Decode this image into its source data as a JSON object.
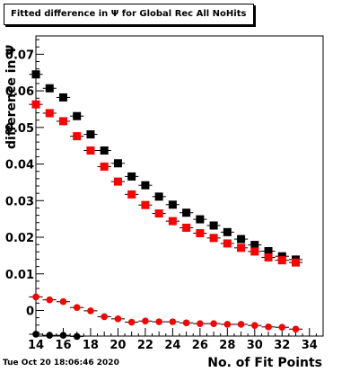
{
  "title": "Fitted difference in Ψ  for Global Rec All NoHits",
  "timestamp": "Tue Oct 20 18:06:46 2020",
  "chart_data": {
    "type": "scatter",
    "xlabel": "No. of Fit Points",
    "ylabel": "difference in Ψ",
    "xlim": [
      14,
      35
    ],
    "ylim": [
      -0.007,
      0.075
    ],
    "xticks": [
      14,
      16,
      18,
      20,
      22,
      24,
      26,
      28,
      30,
      32,
      34
    ],
    "yticks": [
      0,
      0.01,
      0.02,
      0.03,
      0.04,
      0.05,
      0.06,
      0.07
    ],
    "ytick_labels": [
      "0",
      "0.01",
      "0.02",
      "0.03",
      "0.04",
      "0.05",
      "0.06",
      "0.07"
    ],
    "grid": false,
    "series": [
      {
        "color": "#000000",
        "marker": "square",
        "x": [
          14,
          15,
          16,
          17,
          18,
          19,
          20,
          21,
          22,
          23,
          24,
          25,
          26,
          27,
          28,
          29,
          30,
          31,
          32,
          33
        ],
        "y": [
          0.0645,
          0.0607,
          0.0582,
          0.0531,
          0.0481,
          0.0437,
          0.0402,
          0.0366,
          0.0342,
          0.0311,
          0.0289,
          0.0267,
          0.0249,
          0.0232,
          0.0214,
          0.0195,
          0.0179,
          0.0162,
          0.0148,
          0.0139
        ]
      },
      {
        "color": "#ff0000",
        "marker": "square",
        "x": [
          14,
          15,
          16,
          17,
          18,
          19,
          20,
          21,
          22,
          23,
          24,
          25,
          26,
          27,
          28,
          29,
          30,
          31,
          32,
          33
        ],
        "y": [
          0.0563,
          0.0539,
          0.0517,
          0.0476,
          0.0437,
          0.0393,
          0.0352,
          0.0317,
          0.0288,
          0.0265,
          0.0244,
          0.0226,
          0.0211,
          0.0198,
          0.0183,
          0.0171,
          0.0161,
          0.0145,
          0.0137,
          0.0131
        ]
      },
      {
        "color": "#ff0000",
        "marker": "circle",
        "x": [
          14,
          15,
          16,
          17,
          18,
          19,
          20,
          21,
          22,
          23,
          24,
          25,
          26,
          27,
          28,
          29,
          30,
          31,
          32,
          33
        ],
        "y": [
          0.0037,
          0.0029,
          0.0024,
          0.0008,
          -0.0001,
          -0.0017,
          -0.0023,
          -0.0032,
          -0.0029,
          -0.0031,
          -0.0031,
          -0.0034,
          -0.0036,
          -0.0036,
          -0.0038,
          -0.0038,
          -0.0041,
          -0.0045,
          -0.0046,
          -0.0051
        ]
      },
      {
        "color": "#000000",
        "marker": "circle",
        "x": [
          14,
          15,
          16,
          17
        ],
        "y": [
          -0.0065,
          -0.0068,
          -0.0068,
          -0.0071
        ]
      }
    ]
  }
}
